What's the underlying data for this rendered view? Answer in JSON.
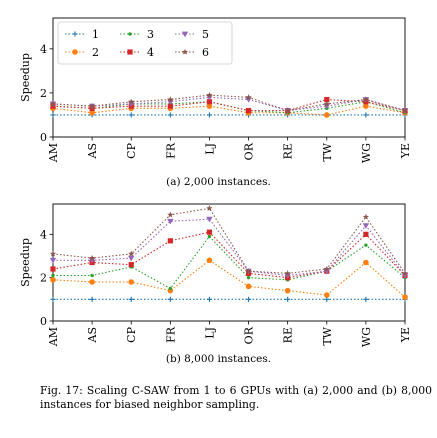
{
  "caption": {
    "text": "Fig. 17: Scaling C-SAW from 1 to 6 GPUs with (a) 2,000 and (b) 8,000 instances for biased neighbor sampling."
  },
  "chart_data": [
    {
      "type": "line",
      "subcaption": "(a) 2,000 instances.",
      "ylabel": "Speedup",
      "categories": [
        "AM",
        "AS",
        "CP",
        "FR",
        "LJ",
        "OR",
        "RE",
        "TW",
        "WG",
        "YE"
      ],
      "ylim": [
        0,
        5.4
      ],
      "yticks": [
        0,
        2,
        4
      ],
      "grid": false,
      "legend": {
        "placement": "top-left",
        "columns": 3
      },
      "series": [
        {
          "name": "1",
          "color": "#1f77b4",
          "marker": "plus",
          "values": [
            1.0,
            1.0,
            1.0,
            1.0,
            1.0,
            1.0,
            1.0,
            1.0,
            1.0,
            1.0
          ]
        },
        {
          "name": "2",
          "color": "#ff7f0e",
          "marker": "circle",
          "values": [
            1.3,
            1.1,
            1.3,
            1.3,
            1.4,
            1.1,
            1.1,
            1.0,
            1.4,
            1.1
          ]
        },
        {
          "name": "3",
          "color": "#2ca02c",
          "marker": "dot",
          "values": [
            1.4,
            1.3,
            1.5,
            1.5,
            1.6,
            1.2,
            1.1,
            1.3,
            1.6,
            1.1
          ]
        },
        {
          "name": "4",
          "color": "#d62728",
          "marker": "square",
          "values": [
            1.4,
            1.3,
            1.4,
            1.4,
            1.6,
            1.2,
            1.2,
            1.7,
            1.6,
            1.2
          ]
        },
        {
          "name": "5",
          "color": "#9467bd",
          "marker": "triangle",
          "values": [
            1.5,
            1.4,
            1.5,
            1.6,
            1.8,
            1.7,
            1.2,
            1.4,
            1.7,
            1.2
          ]
        },
        {
          "name": "6",
          "color": "#8c564b",
          "marker": "star",
          "values": [
            1.5,
            1.4,
            1.6,
            1.7,
            1.9,
            1.8,
            1.2,
            1.5,
            1.7,
            1.2
          ]
        }
      ]
    },
    {
      "type": "line",
      "subcaption": "(b) 8,000 instances.",
      "ylabel": "Speedup",
      "categories": [
        "AM",
        "AS",
        "CP",
        "FR",
        "LJ",
        "OR",
        "RE",
        "TW",
        "WG",
        "YE"
      ],
      "ylim": [
        0,
        5.4
      ],
      "yticks": [
        0,
        2,
        4
      ],
      "grid": false,
      "legend": null,
      "series": [
        {
          "name": "1",
          "color": "#1f77b4",
          "marker": "plus",
          "values": [
            1.0,
            1.0,
            1.0,
            1.0,
            1.0,
            1.0,
            1.0,
            1.0,
            1.0,
            1.0
          ]
        },
        {
          "name": "2",
          "color": "#ff7f0e",
          "marker": "circle",
          "values": [
            1.9,
            1.8,
            1.8,
            1.4,
            2.8,
            1.6,
            1.4,
            1.2,
            2.7,
            1.1
          ]
        },
        {
          "name": "3",
          "color": "#2ca02c",
          "marker": "dot",
          "values": [
            2.1,
            2.1,
            2.5,
            1.5,
            3.9,
            2.0,
            1.9,
            2.3,
            3.5,
            2.0
          ]
        },
        {
          "name": "4",
          "color": "#d62728",
          "marker": "square",
          "values": [
            2.4,
            2.7,
            2.6,
            3.7,
            4.1,
            2.2,
            2.0,
            2.3,
            4.0,
            2.1
          ]
        },
        {
          "name": "5",
          "color": "#9467bd",
          "marker": "triangle",
          "values": [
            2.8,
            2.8,
            2.9,
            4.6,
            4.7,
            2.3,
            2.1,
            2.3,
            4.4,
            2.1
          ]
        },
        {
          "name": "6",
          "color": "#8c564b",
          "marker": "star",
          "values": [
            3.1,
            2.9,
            3.1,
            4.9,
            5.2,
            2.3,
            2.2,
            2.4,
            4.8,
            2.2
          ]
        }
      ]
    }
  ]
}
